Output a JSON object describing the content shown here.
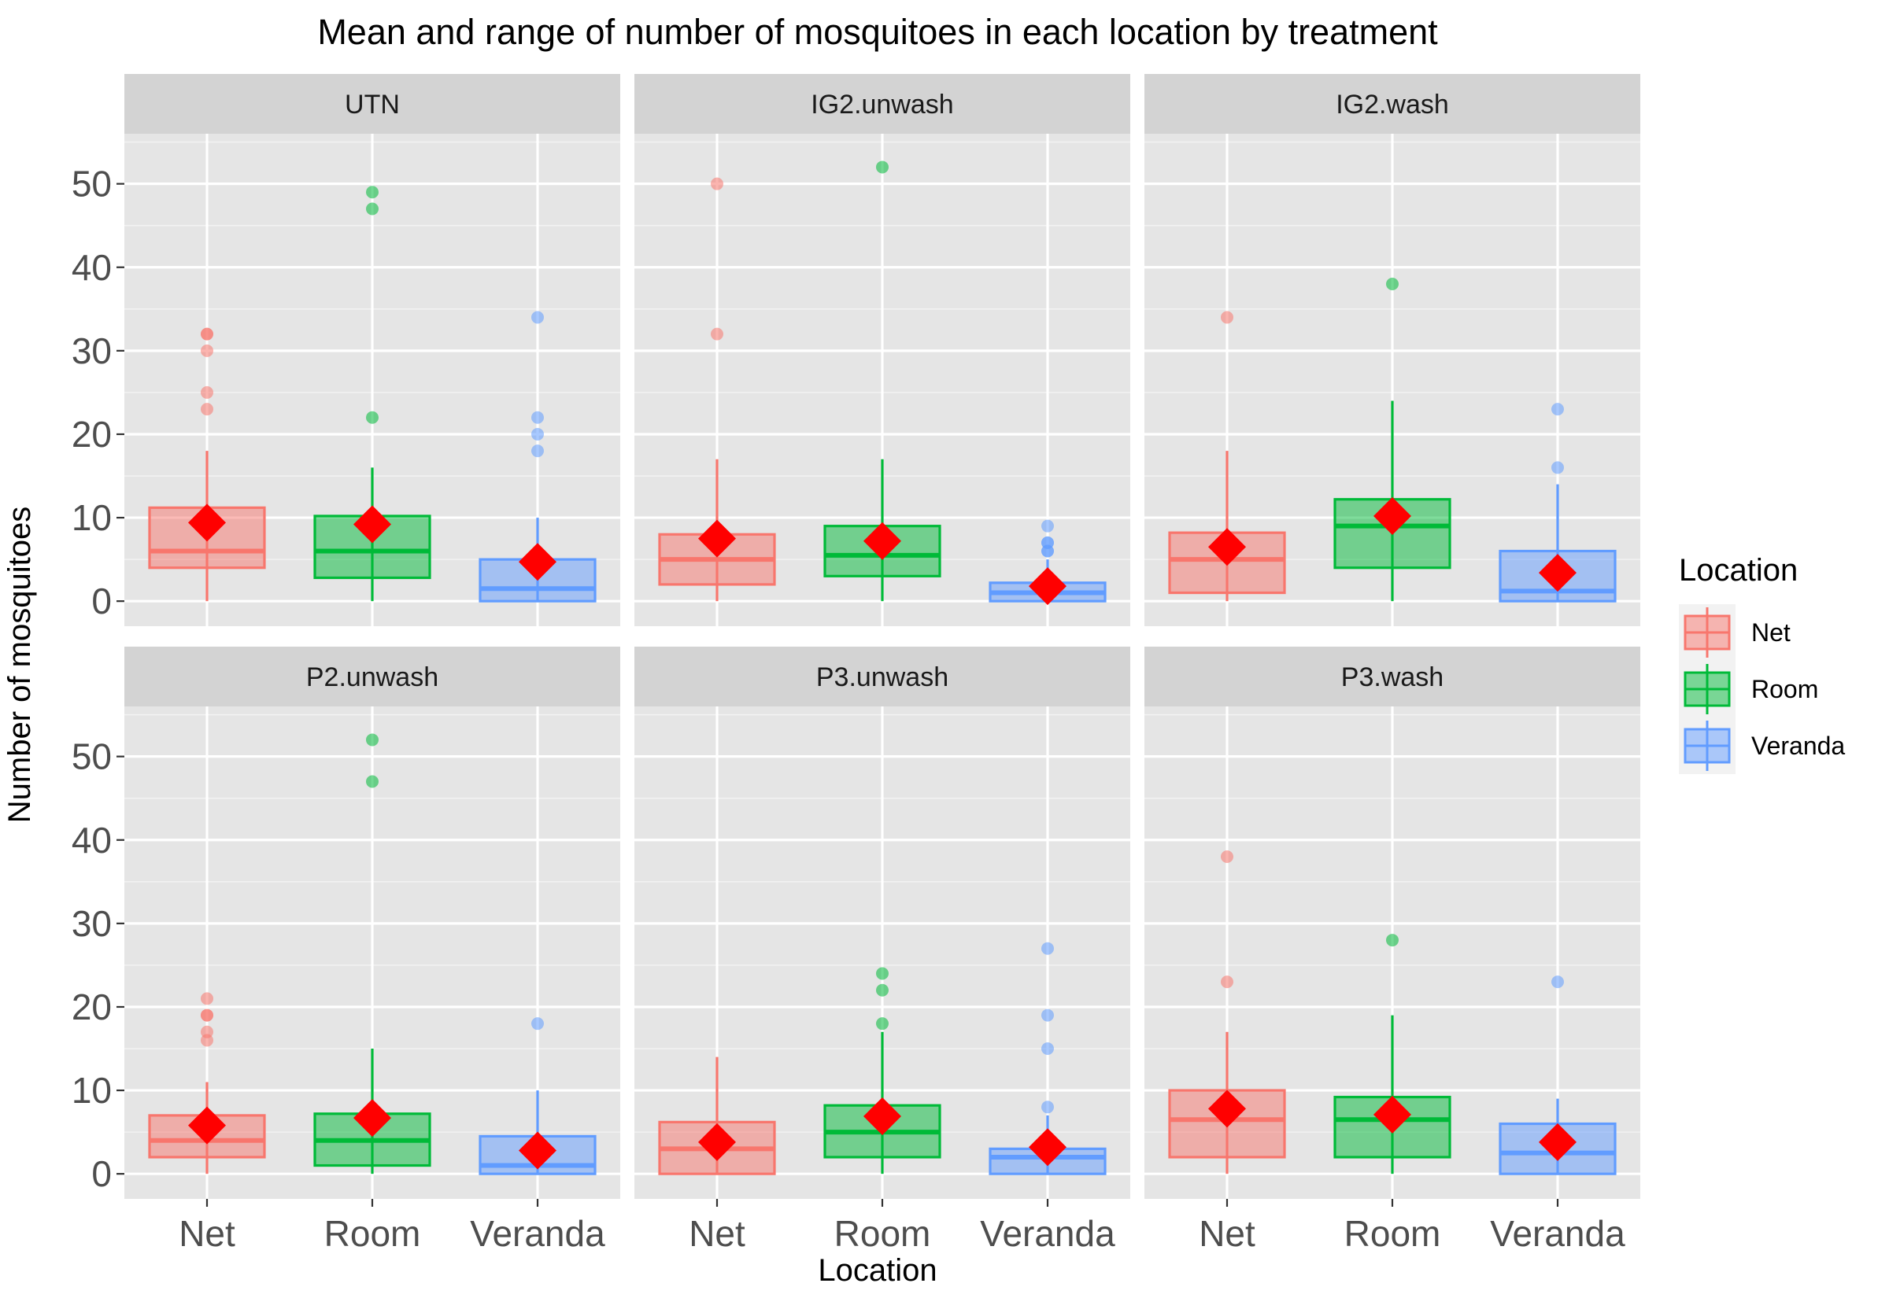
{
  "chart_data": {
    "type": "box",
    "title": "Mean and range of number of mosquitoes in each location by treatment",
    "xlabel": "Location",
    "ylabel": "Number of mosquitoes",
    "ylim": [
      -3,
      56
    ],
    "y_ticks": [
      0,
      10,
      20,
      30,
      40,
      50
    ],
    "categories": [
      "Net",
      "Room",
      "Veranda"
    ],
    "legend": {
      "title": "Location",
      "position": "right",
      "entries": [
        "Net",
        "Room",
        "Veranda"
      ]
    },
    "colors": {
      "Net": "#F8766D",
      "Room": "#00BA38",
      "Veranda": "#619CFF",
      "mean": "#FF0000"
    },
    "facets": [
      {
        "name": "UTN",
        "boxes": [
          {
            "location": "Net",
            "min": 0,
            "q1": 4,
            "median": 6,
            "q3": 11.2,
            "max": 18,
            "mean": 9.4,
            "outliers": [
              23,
              25,
              30,
              32,
              32
            ]
          },
          {
            "location": "Room",
            "min": 0,
            "q1": 2.8,
            "median": 6,
            "q3": 10.2,
            "max": 16,
            "mean": 9.2,
            "outliers": [
              22,
              47,
              49
            ]
          },
          {
            "location": "Veranda",
            "min": 0,
            "q1": 0,
            "median": 1.5,
            "q3": 5,
            "max": 10,
            "mean": 4.7,
            "outliers": [
              18,
              20,
              22,
              34
            ]
          }
        ]
      },
      {
        "name": "IG2.unwash",
        "boxes": [
          {
            "location": "Net",
            "min": 0,
            "q1": 2,
            "median": 5,
            "q3": 8,
            "max": 17,
            "mean": 7.5,
            "outliers": [
              32,
              50
            ]
          },
          {
            "location": "Room",
            "min": 0,
            "q1": 3,
            "median": 5.5,
            "q3": 9,
            "max": 17,
            "mean": 7.2,
            "outliers": [
              52
            ]
          },
          {
            "location": "Veranda",
            "min": 0,
            "q1": 0,
            "median": 1,
            "q3": 2.2,
            "max": 5,
            "mean": 1.8,
            "outliers": [
              6,
              6,
              7,
              7,
              9
            ]
          }
        ]
      },
      {
        "name": "IG2.wash",
        "boxes": [
          {
            "location": "Net",
            "min": 0,
            "q1": 1,
            "median": 5,
            "q3": 8.2,
            "max": 18,
            "mean": 6.5,
            "outliers": [
              34
            ]
          },
          {
            "location": "Room",
            "min": 0,
            "q1": 4,
            "median": 9,
            "q3": 12.2,
            "max": 24,
            "mean": 10.2,
            "outliers": [
              38
            ]
          },
          {
            "location": "Veranda",
            "min": 0,
            "q1": 0,
            "median": 1.2,
            "q3": 6,
            "max": 14,
            "mean": 3.4,
            "outliers": [
              16,
              23
            ]
          }
        ]
      },
      {
        "name": "P2.unwash",
        "boxes": [
          {
            "location": "Net",
            "min": 0,
            "q1": 2,
            "median": 4,
            "q3": 7,
            "max": 11,
            "mean": 5.8,
            "outliers": [
              16,
              17,
              19,
              19,
              21
            ]
          },
          {
            "location": "Room",
            "min": 0,
            "q1": 1,
            "median": 4,
            "q3": 7.2,
            "max": 15,
            "mean": 6.7,
            "outliers": [
              47,
              52
            ]
          },
          {
            "location": "Veranda",
            "min": 0,
            "q1": 0,
            "median": 1,
            "q3": 4.5,
            "max": 10,
            "mean": 2.8,
            "outliers": [
              18
            ]
          }
        ]
      },
      {
        "name": "P3.unwash",
        "boxes": [
          {
            "location": "Net",
            "min": 0,
            "q1": 0,
            "median": 3,
            "q3": 6.2,
            "max": 14,
            "mean": 3.8,
            "outliers": []
          },
          {
            "location": "Room",
            "min": 0,
            "q1": 2,
            "median": 5,
            "q3": 8.2,
            "max": 17,
            "mean": 6.9,
            "outliers": [
              18,
              22,
              24
            ]
          },
          {
            "location": "Veranda",
            "min": 0,
            "q1": 0,
            "median": 2,
            "q3": 3,
            "max": 7,
            "mean": 3.2,
            "outliers": [
              8,
              15,
              19,
              27
            ]
          }
        ]
      },
      {
        "name": "P3.wash",
        "boxes": [
          {
            "location": "Net",
            "min": 0,
            "q1": 2,
            "median": 6.5,
            "q3": 10,
            "max": 17,
            "mean": 7.8,
            "outliers": [
              23,
              38
            ]
          },
          {
            "location": "Room",
            "min": 0,
            "q1": 2,
            "median": 6.5,
            "q3": 9.2,
            "max": 19,
            "mean": 7.1,
            "outliers": [
              28
            ]
          },
          {
            "location": "Veranda",
            "min": 0,
            "q1": 0,
            "median": 2.5,
            "q3": 6,
            "max": 9,
            "mean": 3.8,
            "outliers": [
              23
            ]
          }
        ]
      }
    ]
  }
}
